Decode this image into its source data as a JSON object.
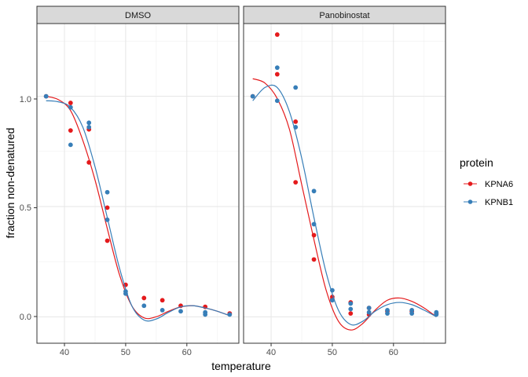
{
  "chart_data": {
    "type": "scatter",
    "facet_by": "drug",
    "xlabel": "temperature",
    "ylabel": "fraction non-denatured",
    "xlim": [
      35.5,
      68.5
    ],
    "ylim": [
      -0.12,
      1.33
    ],
    "xticks": [
      40,
      50,
      60
    ],
    "yticks": [
      0.0,
      0.5,
      1.0
    ],
    "ytick_labels": [
      "0.0",
      "0.5",
      "1.0"
    ],
    "xtick_labels": [
      "40",
      "50",
      "60"
    ],
    "legend": {
      "title": "protein",
      "position": "right",
      "entries": [
        {
          "name": "KPNA6",
          "color": "#e41a1c"
        },
        {
          "name": "KPNB1",
          "color": "#377eb8"
        }
      ]
    },
    "panels": [
      {
        "title": "DMSO",
        "series": [
          {
            "name": "KPNA6",
            "color": "#e41a1c",
            "points": [
              {
                "x": 37,
                "y": 1.0
              },
              {
                "x": 41,
                "y": 0.97
              },
              {
                "x": 41,
                "y": 0.845
              },
              {
                "x": 44,
                "y": 0.85
              },
              {
                "x": 44,
                "y": 0.7
              },
              {
                "x": 47,
                "y": 0.495
              },
              {
                "x": 47,
                "y": 0.345
              },
              {
                "x": 50,
                "y": 0.145
              },
              {
                "x": 53,
                "y": 0.085
              },
              {
                "x": 56,
                "y": 0.075
              },
              {
                "x": 59,
                "y": 0.05
              },
              {
                "x": 63,
                "y": 0.045
              },
              {
                "x": 67,
                "y": 0.015
              }
            ],
            "curve": [
              {
                "x": 37,
                "y": 1.0
              },
              {
                "x": 39,
                "y": 0.985
              },
              {
                "x": 41,
                "y": 0.935
              },
              {
                "x": 43,
                "y": 0.8
              },
              {
                "x": 45,
                "y": 0.62
              },
              {
                "x": 47,
                "y": 0.4
              },
              {
                "x": 49,
                "y": 0.19
              },
              {
                "x": 51,
                "y": 0.05
              },
              {
                "x": 53,
                "y": -0.005
              },
              {
                "x": 55,
                "y": 0.0
              },
              {
                "x": 57,
                "y": 0.025
              },
              {
                "x": 59,
                "y": 0.045
              },
              {
                "x": 61,
                "y": 0.05
              },
              {
                "x": 63,
                "y": 0.04
              },
              {
                "x": 65,
                "y": 0.025
              },
              {
                "x": 67,
                "y": 0.005
              }
            ]
          },
          {
            "name": "KPNB1",
            "color": "#377eb8",
            "points": [
              {
                "x": 37,
                "y": 1.0
              },
              {
                "x": 41,
                "y": 0.95
              },
              {
                "x": 41,
                "y": 0.78
              },
              {
                "x": 44,
                "y": 0.88
              },
              {
                "x": 44,
                "y": 0.86
              },
              {
                "x": 47,
                "y": 0.565
              },
              {
                "x": 47,
                "y": 0.44
              },
              {
                "x": 50,
                "y": 0.115
              },
              {
                "x": 50,
                "y": 0.105
              },
              {
                "x": 53,
                "y": 0.05
              },
              {
                "x": 56,
                "y": 0.03
              },
              {
                "x": 59,
                "y": 0.025
              },
              {
                "x": 63,
                "y": 0.02
              },
              {
                "x": 63,
                "y": 0.01
              },
              {
                "x": 67,
                "y": 0.01
              }
            ],
            "curve": [
              {
                "x": 37,
                "y": 0.98
              },
              {
                "x": 39,
                "y": 0.975
              },
              {
                "x": 41,
                "y": 0.95
              },
              {
                "x": 43,
                "y": 0.86
              },
              {
                "x": 45,
                "y": 0.68
              },
              {
                "x": 47,
                "y": 0.45
              },
              {
                "x": 49,
                "y": 0.22
              },
              {
                "x": 51,
                "y": 0.05
              },
              {
                "x": 53,
                "y": -0.015
              },
              {
                "x": 55,
                "y": -0.01
              },
              {
                "x": 57,
                "y": 0.02
              },
              {
                "x": 59,
                "y": 0.045
              },
              {
                "x": 61,
                "y": 0.05
              },
              {
                "x": 63,
                "y": 0.04
              },
              {
                "x": 65,
                "y": 0.025
              },
              {
                "x": 67,
                "y": 0.005
              }
            ]
          }
        ]
      },
      {
        "title": "Panobinostat",
        "series": [
          {
            "name": "KPNA6",
            "color": "#e41a1c",
            "points": [
              {
                "x": 37,
                "y": 1.0
              },
              {
                "x": 41,
                "y": 1.28
              },
              {
                "x": 41,
                "y": 1.1
              },
              {
                "x": 44,
                "y": 0.885
              },
              {
                "x": 44,
                "y": 0.61
              },
              {
                "x": 47,
                "y": 0.37
              },
              {
                "x": 47,
                "y": 0.26
              },
              {
                "x": 50,
                "y": 0.09
              },
              {
                "x": 50,
                "y": 0.08
              },
              {
                "x": 53,
                "y": 0.065
              },
              {
                "x": 53,
                "y": 0.015
              },
              {
                "x": 56,
                "y": 0.04
              },
              {
                "x": 56,
                "y": 0.01
              },
              {
                "x": 59,
                "y": 0.025
              },
              {
                "x": 63,
                "y": 0.025
              },
              {
                "x": 67,
                "y": 0.015
              }
            ],
            "curve": [
              {
                "x": 37,
                "y": 1.08
              },
              {
                "x": 39,
                "y": 1.06
              },
              {
                "x": 41,
                "y": 0.99
              },
              {
                "x": 43,
                "y": 0.85
              },
              {
                "x": 45,
                "y": 0.6
              },
              {
                "x": 47,
                "y": 0.35
              },
              {
                "x": 49,
                "y": 0.12
              },
              {
                "x": 51,
                "y": -0.02
              },
              {
                "x": 53,
                "y": -0.06
              },
              {
                "x": 55,
                "y": -0.03
              },
              {
                "x": 57,
                "y": 0.03
              },
              {
                "x": 59,
                "y": 0.075
              },
              {
                "x": 61,
                "y": 0.085
              },
              {
                "x": 63,
                "y": 0.07
              },
              {
                "x": 65,
                "y": 0.04
              },
              {
                "x": 67,
                "y": 0.0
              }
            ]
          },
          {
            "name": "KPNB1",
            "color": "#377eb8",
            "points": [
              {
                "x": 37,
                "y": 1.0
              },
              {
                "x": 41,
                "y": 1.13
              },
              {
                "x": 41,
                "y": 0.98
              },
              {
                "x": 44,
                "y": 1.04
              },
              {
                "x": 44,
                "y": 0.86
              },
              {
                "x": 47,
                "y": 0.57
              },
              {
                "x": 47,
                "y": 0.42
              },
              {
                "x": 50,
                "y": 0.12
              },
              {
                "x": 50,
                "y": 0.075
              },
              {
                "x": 53,
                "y": 0.06
              },
              {
                "x": 53,
                "y": 0.035
              },
              {
                "x": 56,
                "y": 0.04
              },
              {
                "x": 56,
                "y": 0.02
              },
              {
                "x": 59,
                "y": 0.03
              },
              {
                "x": 59,
                "y": 0.015
              },
              {
                "x": 63,
                "y": 0.03
              },
              {
                "x": 63,
                "y": 0.015
              },
              {
                "x": 67,
                "y": 0.02
              },
              {
                "x": 67,
                "y": 0.01
              }
            ],
            "curve": [
              {
                "x": 37,
                "y": 0.98
              },
              {
                "x": 39,
                "y": 1.04
              },
              {
                "x": 41,
                "y": 1.04
              },
              {
                "x": 43,
                "y": 0.93
              },
              {
                "x": 45,
                "y": 0.72
              },
              {
                "x": 47,
                "y": 0.45
              },
              {
                "x": 49,
                "y": 0.2
              },
              {
                "x": 51,
                "y": 0.03
              },
              {
                "x": 53,
                "y": -0.035
              },
              {
                "x": 55,
                "y": -0.02
              },
              {
                "x": 57,
                "y": 0.025
              },
              {
                "x": 59,
                "y": 0.055
              },
              {
                "x": 61,
                "y": 0.065
              },
              {
                "x": 63,
                "y": 0.055
              },
              {
                "x": 65,
                "y": 0.03
              },
              {
                "x": 67,
                "y": 0.0
              }
            ]
          }
        ]
      }
    ]
  }
}
